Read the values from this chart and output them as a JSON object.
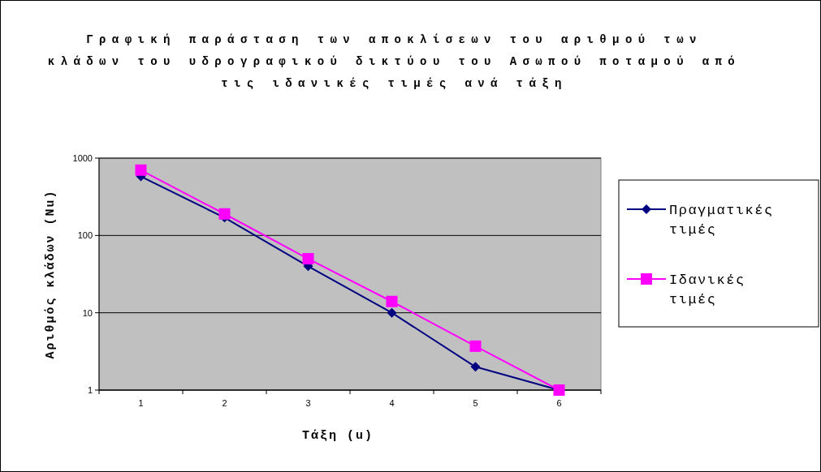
{
  "chart_data": {
    "type": "line",
    "title": "Γραφική παράσταση των αποκλίσεων του αριθμού των κλάδων του υδρογραφικού δικτύου του Ασωπού ποταμού από τις ιδανικές τιμές ανά τάξη",
    "xlabel": "Τάξη (u)",
    "ylabel": "Αριθμός κλάδων (Nu)",
    "categories": [
      "1",
      "2",
      "3",
      "4",
      "5",
      "6"
    ],
    "series": [
      {
        "name": "Πραγματικές τιμές",
        "color": "#000080",
        "marker": "diamond",
        "values": [
          580,
          170,
          40,
          10,
          2,
          1
        ]
      },
      {
        "name": "Ιδανικές τιμές",
        "color": "#ff00ff",
        "marker": "square",
        "values": [
          700,
          190,
          50,
          14,
          3.7,
          1
        ]
      }
    ],
    "log": "y",
    "ylim": [
      1,
      1000
    ],
    "yticks": [
      1,
      10,
      100,
      1000
    ],
    "grid": "y",
    "legend": "right",
    "line_style": "solid"
  }
}
